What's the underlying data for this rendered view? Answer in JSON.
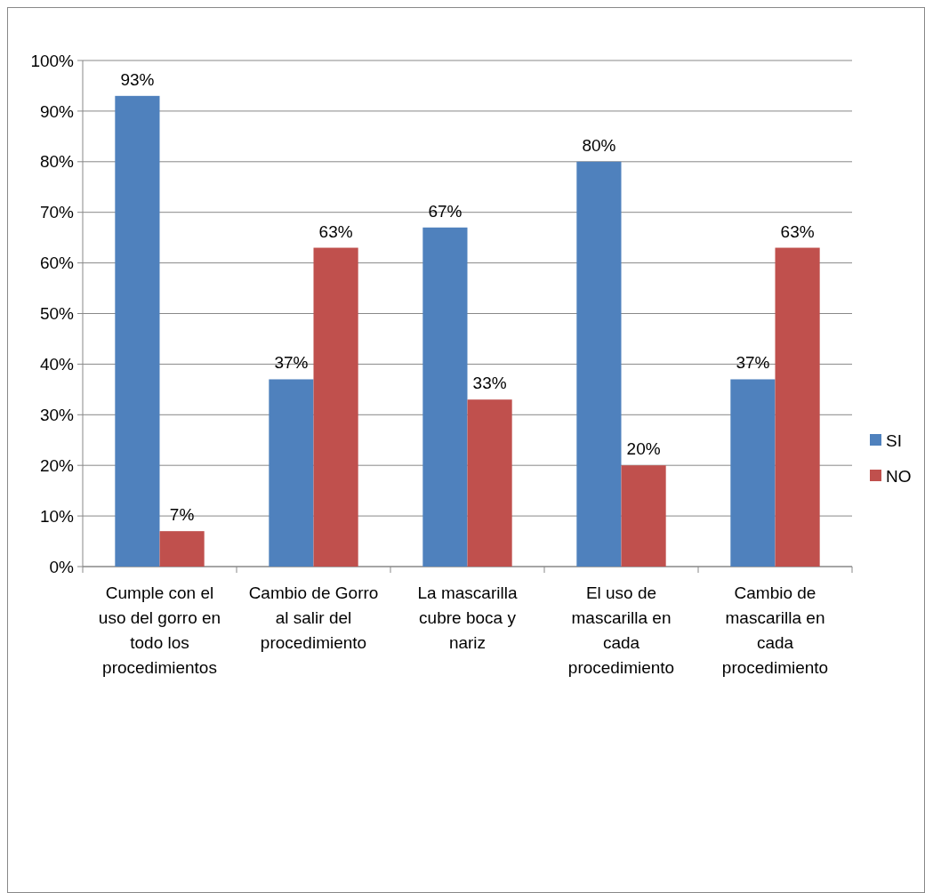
{
  "chart_data": {
    "type": "bar",
    "categories": [
      "Cumple con el uso del gorro en todo los procedimientos",
      "Cambio de Gorro al salir del procedimiento",
      "La mascarilla cubre boca y nariz",
      "El uso de mascarilla en cada procedimiento",
      "Cambio de mascarilla en cada procedimiento"
    ],
    "series": [
      {
        "name": "SI",
        "color": "#4f81bd",
        "values": [
          93,
          37,
          67,
          80,
          37
        ],
        "value_labels": [
          "93%",
          "37%",
          "67%",
          "80%",
          "37%"
        ]
      },
      {
        "name": "NO",
        "color": "#c0504d",
        "values": [
          7,
          63,
          33,
          20,
          63
        ],
        "value_labels": [
          "7%",
          "63%",
          "33%",
          "20%",
          "63%"
        ]
      }
    ],
    "ylim": [
      0,
      100
    ],
    "yticks": [
      {
        "value": 0,
        "label": "0%"
      },
      {
        "value": 10,
        "label": "10%"
      },
      {
        "value": 20,
        "label": "20%"
      },
      {
        "value": 30,
        "label": "30%"
      },
      {
        "value": 40,
        "label": "40%"
      },
      {
        "value": 50,
        "label": "50%"
      },
      {
        "value": 60,
        "label": "60%"
      },
      {
        "value": 70,
        "label": "70%"
      },
      {
        "value": 80,
        "label": "80%"
      },
      {
        "value": 90,
        "label": "90%"
      },
      {
        "value": 100,
        "label": "100%"
      }
    ],
    "grid": "y",
    "legend": "right"
  }
}
